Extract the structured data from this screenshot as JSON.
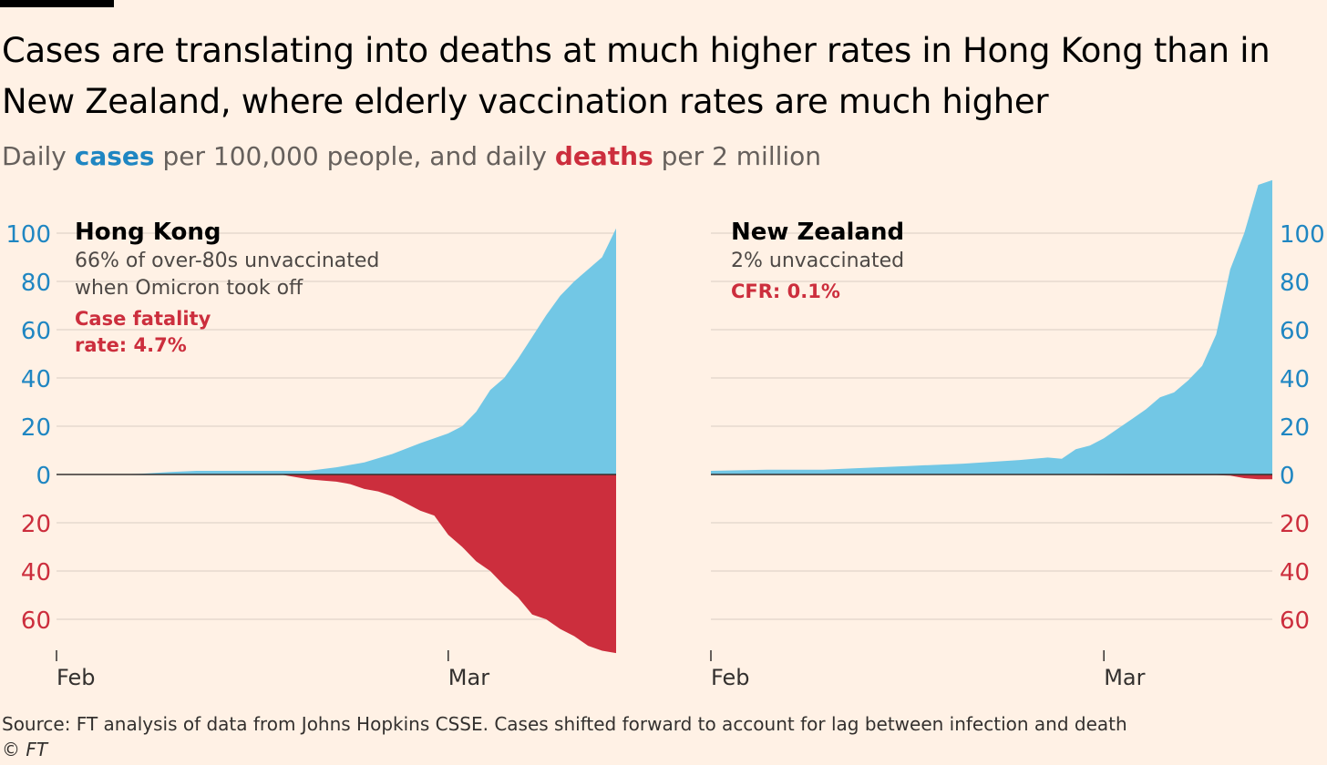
{
  "title": "Cases are translating into deaths at much higher rates in Hong Kong than in New Zealand, where elderly vaccination rates are much higher",
  "subtitle": {
    "prefix": "Daily ",
    "cases_word": "cases",
    "middle": " per 100,000 people, and daily ",
    "deaths_word": "deaths",
    "suffix": " per 2 million"
  },
  "colors": {
    "cases": "#72c7e5",
    "deaths": "#cc2e3d",
    "cases_axis": "#1f86c2",
    "deaths_axis": "#cc2e3d"
  },
  "source": "Source: FT analysis of data from Johns Hopkins CSSE. Cases shifted forward to account for lag between infection and death",
  "copyright": "© FT",
  "chart_data": [
    {
      "type": "area",
      "panel": "Hong Kong",
      "title": "Hong Kong",
      "note": "66% of over-80s unvaccinated when Omicron took off",
      "note_lines": [
        "66% of over-80s unvaccinated",
        "when Omicron took off"
      ],
      "highlight_lines": [
        "Case fatality",
        "rate: 4.7%"
      ],
      "x_ticks": [
        {
          "label": "Feb",
          "day": 0
        },
        {
          "label": "Mar",
          "day": 28
        }
      ],
      "x_range": [
        0,
        40
      ],
      "y_ticks_cases": [
        "100",
        "80",
        "60",
        "40",
        "20",
        "0"
      ],
      "y_ticks_deaths": [
        "20",
        "40",
        "60"
      ],
      "ylim_cases": [
        0,
        100
      ],
      "ylim_deaths": [
        0,
        60
      ],
      "axis_side": "left",
      "series": [
        {
          "name": "cases per 100,000",
          "x": [
            0,
            2,
            4,
            6,
            8,
            10,
            12,
            14,
            16,
            18,
            20,
            22,
            24,
            26,
            27,
            28,
            29,
            30,
            31,
            32,
            33,
            34,
            35,
            36,
            37,
            38,
            39,
            40
          ],
          "values": [
            0,
            0,
            0,
            0.3,
            1,
            1.5,
            1.5,
            1.5,
            1.5,
            1.5,
            3,
            5,
            8.5,
            13,
            15,
            17,
            20,
            26,
            35,
            40,
            48,
            57,
            66,
            74,
            80,
            85,
            90,
            102
          ]
        },
        {
          "name": "deaths per 2 million",
          "x": [
            0,
            2,
            4,
            6,
            8,
            10,
            12,
            14,
            16,
            17,
            18,
            19,
            20,
            21,
            22,
            23,
            24,
            25,
            26,
            27,
            28,
            29,
            30,
            31,
            32,
            33,
            34,
            35,
            36,
            37,
            38,
            39,
            40
          ],
          "values": [
            0,
            0,
            0,
            0,
            0,
            0,
            0,
            0,
            0,
            1,
            2,
            2.5,
            3,
            4,
            6,
            7,
            9,
            12,
            15,
            17,
            25,
            30,
            36,
            40,
            46,
            51,
            58,
            60,
            64,
            67,
            71,
            73,
            74
          ]
        }
      ]
    },
    {
      "type": "area",
      "panel": "New Zealand",
      "title": "New Zealand",
      "note": "2% unvaccinated",
      "note_lines": [
        "2% unvaccinated"
      ],
      "highlight_lines": [
        "CFR: 0.1%"
      ],
      "x_ticks": [
        {
          "label": "Feb",
          "day": 0
        },
        {
          "label": "Mar",
          "day": 28
        }
      ],
      "x_range": [
        0,
        40
      ],
      "y_ticks_cases": [
        "100",
        "80",
        "60",
        "40",
        "20",
        "0"
      ],
      "y_ticks_deaths": [
        "20",
        "40",
        "60"
      ],
      "ylim_cases": [
        0,
        100
      ],
      "ylim_deaths": [
        0,
        60
      ],
      "axis_side": "right",
      "series": [
        {
          "name": "cases per 100,000",
          "x": [
            0,
            4,
            8,
            10,
            14,
            18,
            22,
            24,
            25,
            26,
            27,
            28,
            29,
            30,
            31,
            32,
            33,
            34,
            35,
            36,
            37,
            38,
            39,
            40
          ],
          "values": [
            1.5,
            2,
            2,
            2.5,
            3.5,
            4.5,
            6,
            7,
            6.5,
            10.5,
            12,
            15,
            19,
            23,
            27,
            32,
            34,
            39,
            45,
            58,
            85,
            100,
            120,
            122
          ]
        },
        {
          "name": "deaths per 2 million",
          "x": [
            0,
            10,
            20,
            30,
            36,
            37,
            38,
            39,
            40
          ],
          "values": [
            0,
            0,
            0,
            0.3,
            0.3,
            0.5,
            1.5,
            2,
            2
          ]
        }
      ]
    }
  ]
}
